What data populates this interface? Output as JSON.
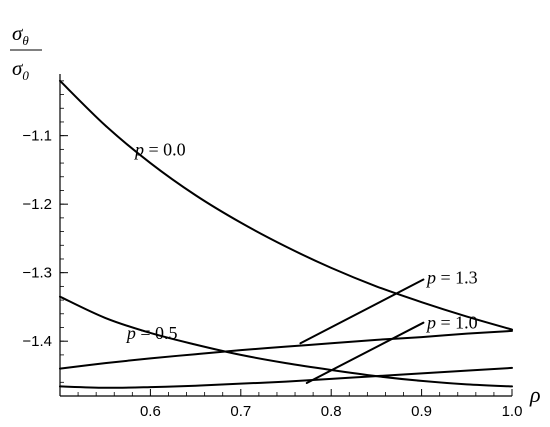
{
  "chart_data": {
    "type": "line",
    "title": "",
    "xlabel": "ρ",
    "ylabel_num": "σ",
    "ylabel_num_sub": "θ",
    "ylabel_den": "σ",
    "ylabel_den_sub": "0",
    "xlim": [
      0.5,
      1.0
    ],
    "ylim": [
      -1.48,
      -1.01
    ],
    "x_ticks": [
      0.6,
      0.7,
      0.8,
      0.9,
      1.0
    ],
    "x_tick_labels": [
      "0.6",
      "0.7",
      "0.8",
      "0.9",
      "1.0"
    ],
    "y_ticks": [
      -1.1,
      -1.2,
      -1.3,
      -1.4
    ],
    "y_tick_labels": [
      "−1.1",
      "−1.2",
      "−1.3",
      "−1.4"
    ],
    "grid": false,
    "series": [
      {
        "name": "p = 0.0",
        "x": [
          0.5,
          0.55,
          0.6,
          0.65,
          0.7,
          0.75,
          0.8,
          0.85,
          0.9,
          0.95,
          1.0
        ],
        "y": [
          -1.02,
          -1.085,
          -1.14,
          -1.187,
          -1.227,
          -1.262,
          -1.293,
          -1.32,
          -1.343,
          -1.364,
          -1.383
        ]
      },
      {
        "name": "p = 0.5",
        "x": [
          0.5,
          0.55,
          0.6,
          0.65,
          0.7,
          0.75,
          0.8,
          0.85,
          0.9,
          0.95,
          1.0
        ],
        "y": [
          -1.335,
          -1.366,
          -1.388,
          -1.405,
          -1.42,
          -1.432,
          -1.442,
          -1.451,
          -1.458,
          -1.463,
          -1.466
        ]
      },
      {
        "name": "p = 1.0",
        "x": [
          0.5,
          0.55,
          0.6,
          0.65,
          0.7,
          0.75,
          0.8,
          0.85,
          0.9,
          0.95,
          1.0
        ],
        "y": [
          -1.466,
          -1.468,
          -1.467,
          -1.465,
          -1.462,
          -1.459,
          -1.455,
          -1.451,
          -1.447,
          -1.443,
          -1.439
        ]
      },
      {
        "name": "p = 1.3",
        "x": [
          0.5,
          0.55,
          0.6,
          0.65,
          0.7,
          0.75,
          0.8,
          0.85,
          0.9,
          0.95,
          1.0
        ],
        "y": [
          -1.44,
          -1.432,
          -1.425,
          -1.419,
          -1.413,
          -1.408,
          -1.403,
          -1.398,
          -1.394,
          -1.389,
          -1.385
        ]
      }
    ],
    "annotations": [
      {
        "label": "p = 0.0",
        "prefix": "p",
        "value": " = 0.0",
        "at": [
          0.583,
          -1.12
        ]
      },
      {
        "label": "p = 0.5",
        "prefix": "p",
        "value": " = 0.5",
        "at": [
          0.574,
          -1.388
        ]
      },
      {
        "label": "p = 1.3",
        "prefix": "p",
        "value": " = 1.3",
        "at": [
          0.906,
          -1.307
        ],
        "leader": [
          [
            0.766,
            -1.403
          ],
          [
            0.902,
            -1.31
          ]
        ]
      },
      {
        "label": "p = 1.0",
        "prefix": "p",
        "value": " = 1.0",
        "at": [
          0.906,
          -1.373
        ],
        "leader": [
          [
            0.773,
            -1.461
          ],
          [
            0.902,
            -1.373
          ]
        ]
      }
    ]
  }
}
